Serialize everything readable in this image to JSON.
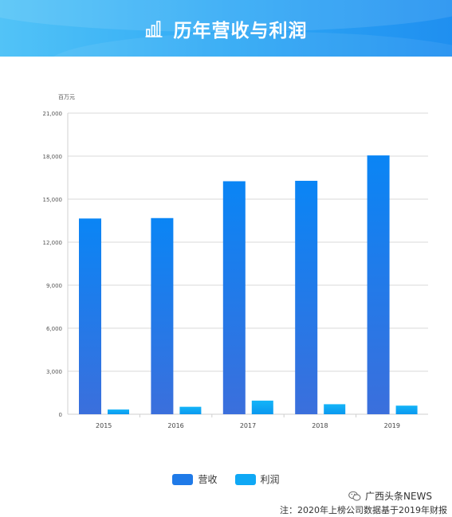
{
  "header": {
    "title": "历年营收与利润"
  },
  "chart_data": {
    "type": "bar",
    "title": "历年营收与利润",
    "ylabel": "百万元",
    "xlabel": "",
    "categories": [
      "2015",
      "2016",
      "2017",
      "2018",
      "2019"
    ],
    "series": [
      {
        "name": "营收",
        "values": [
          13650,
          13680,
          16250,
          16280,
          18050
        ]
      },
      {
        "name": "利润",
        "values": [
          330,
          520,
          950,
          700,
          600
        ]
      }
    ],
    "ylim": [
      0,
      21000
    ],
    "yticks": [
      0,
      3000,
      6000,
      9000,
      12000,
      15000,
      18000,
      21000
    ],
    "ytick_labels": [
      "0",
      "3,000",
      "6,000",
      "9,000",
      "12,000",
      "15,000",
      "18,000",
      "21,000"
    ],
    "grid": true,
    "legend_position": "bottom-center"
  },
  "legend": {
    "items": [
      {
        "label": "营收"
      },
      {
        "label": "利润"
      }
    ]
  },
  "colors": {
    "revenue_top": "#0a85f5",
    "revenue_bottom": "#3b6fdc",
    "profit_top": "#14b4f8",
    "profit_bottom": "#0a98ef"
  },
  "watermark": {
    "text": "广西头条NEWS"
  },
  "footnote": {
    "text": "注：2020年上榜公司数据基于2019年财报"
  },
  "icons": {
    "title": "bar-chart-icon",
    "watermark": "wechat-icon"
  }
}
